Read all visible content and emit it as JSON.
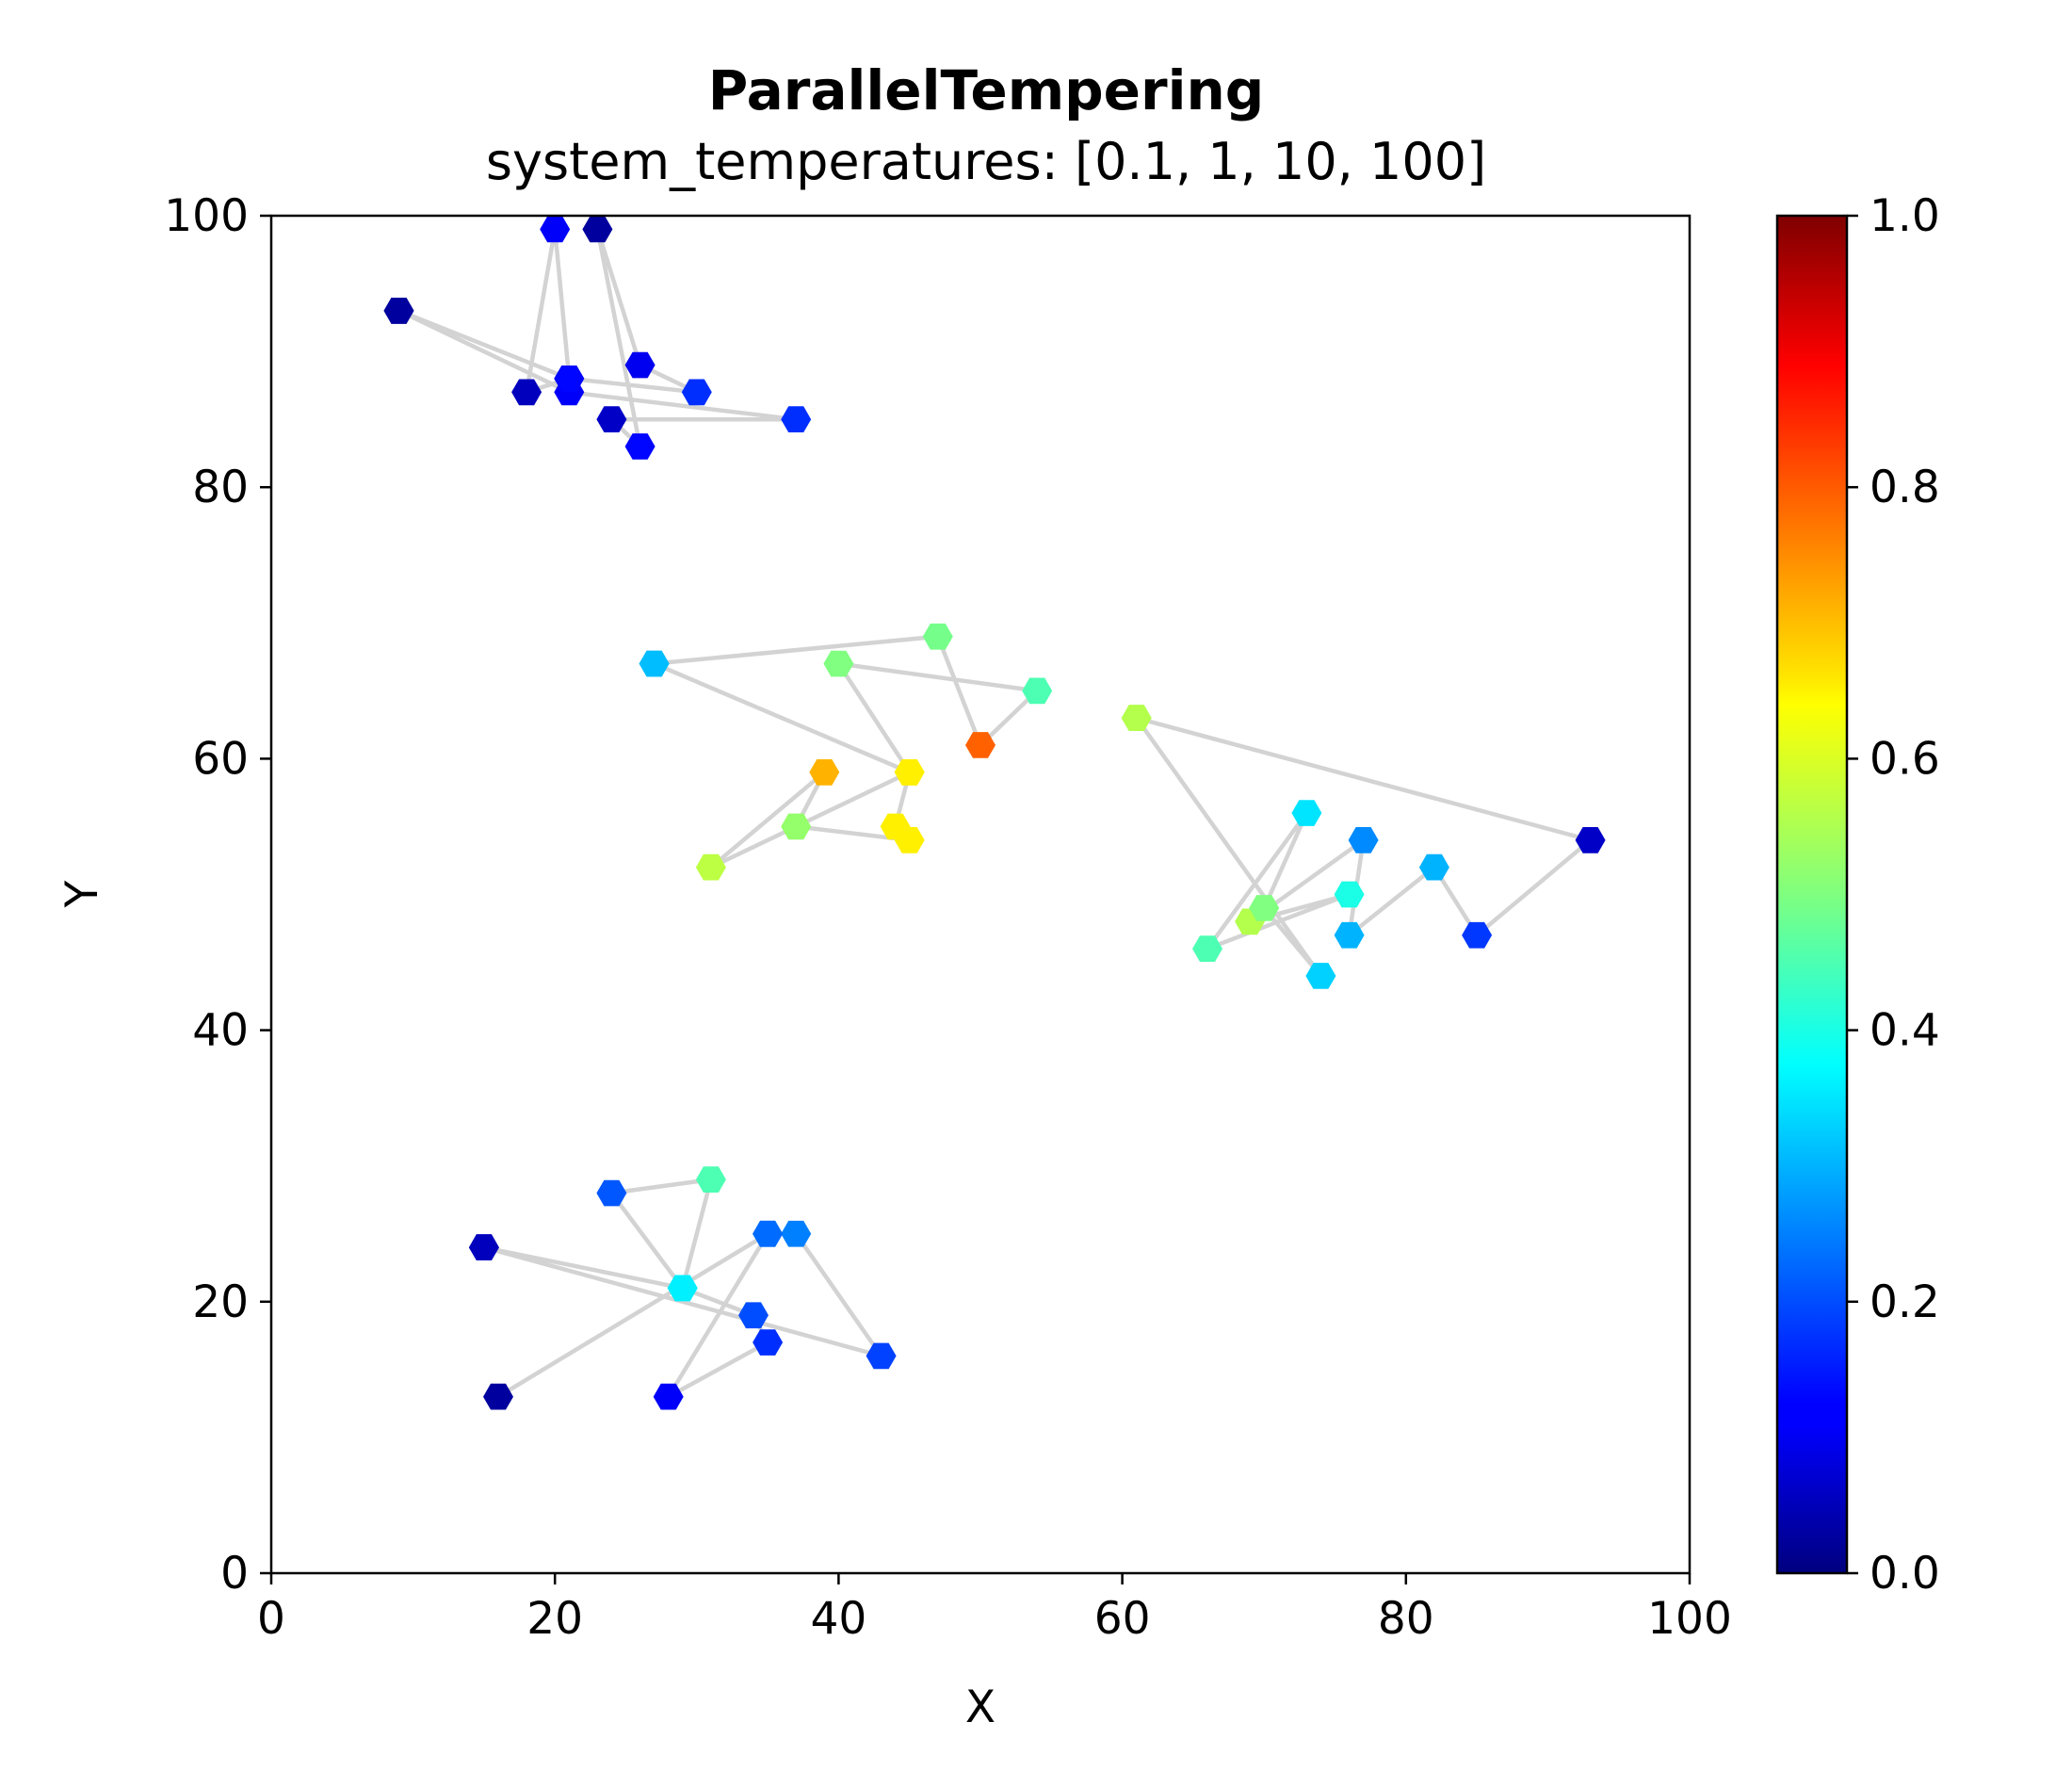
{
  "chart_data": {
    "type": "scatter",
    "title": "ParallelTempering",
    "subtitle": "system_temperatures: [0.1, 1, 10, 100]",
    "xlabel": "X",
    "ylabel": "Y",
    "xlim": [
      0,
      100
    ],
    "ylim": [
      0,
      100
    ],
    "x_ticks": [
      "0",
      "20",
      "40",
      "60",
      "80",
      "100"
    ],
    "y_ticks": [
      "0",
      "20",
      "40",
      "60",
      "80",
      "100"
    ],
    "grid": false,
    "marker": "hexagon",
    "line_color": "#d3d3d3",
    "colormap": "jet",
    "colorbar": {
      "range": [
        0,
        1
      ],
      "ticks": [
        "0.0",
        "0.2",
        "0.4",
        "0.6",
        "0.8",
        "1.0"
      ]
    },
    "paths": [
      {
        "points": [
          {
            "x": 9,
            "y": 93,
            "v": 0.03
          },
          {
            "x": 21,
            "y": 87,
            "v": 0.12
          },
          {
            "x": 37,
            "y": 85,
            "v": 0.17
          },
          {
            "x": 24,
            "y": 85,
            "v": 0.07
          },
          {
            "x": 26,
            "y": 83,
            "v": 0.13
          },
          {
            "x": 23,
            "y": 99,
            "v": 0.03
          },
          {
            "x": 26,
            "y": 89,
            "v": 0.11
          },
          {
            "x": 30,
            "y": 87,
            "v": 0.17
          },
          {
            "x": 21,
            "y": 88,
            "v": 0.13
          },
          {
            "x": 18,
            "y": 87,
            "v": 0.06
          },
          {
            "x": 20,
            "y": 99,
            "v": 0.12
          },
          {
            "x": 21,
            "y": 88,
            "v": 0.13
          },
          {
            "x": 9,
            "y": 93,
            "v": 0.03
          }
        ]
      },
      {
        "points": [
          {
            "x": 27,
            "y": 67,
            "v": 0.31
          },
          {
            "x": 47,
            "y": 69,
            "v": 0.49
          },
          {
            "x": 50,
            "y": 61,
            "v": 0.78
          },
          {
            "x": 54,
            "y": 65,
            "v": 0.45
          },
          {
            "x": 40,
            "y": 67,
            "v": 0.5
          },
          {
            "x": 45,
            "y": 59,
            "v": 0.64
          },
          {
            "x": 44,
            "y": 55,
            "v": 0.64
          },
          {
            "x": 45,
            "y": 54,
            "v": 0.64
          },
          {
            "x": 37,
            "y": 55,
            "v": 0.52
          },
          {
            "x": 39,
            "y": 59,
            "v": 0.7
          },
          {
            "x": 31,
            "y": 52,
            "v": 0.56
          },
          {
            "x": 45,
            "y": 59,
            "v": 0.64
          },
          {
            "x": 27,
            "y": 67,
            "v": 0.31
          }
        ]
      },
      {
        "points": [
          {
            "x": 61,
            "y": 63,
            "v": 0.55
          },
          {
            "x": 93,
            "y": 54,
            "v": 0.07
          },
          {
            "x": 85,
            "y": 47,
            "v": 0.18
          },
          {
            "x": 82,
            "y": 52,
            "v": 0.3
          },
          {
            "x": 76,
            "y": 47,
            "v": 0.3
          },
          {
            "x": 77,
            "y": 54,
            "v": 0.26
          },
          {
            "x": 69,
            "y": 48,
            "v": 0.55
          },
          {
            "x": 76,
            "y": 50,
            "v": 0.4
          },
          {
            "x": 66,
            "y": 46,
            "v": 0.45
          },
          {
            "x": 73,
            "y": 56,
            "v": 0.35
          },
          {
            "x": 70,
            "y": 49,
            "v": 0.5
          },
          {
            "x": 74,
            "y": 44,
            "v": 0.33
          },
          {
            "x": 61,
            "y": 63,
            "v": 0.55
          }
        ]
      },
      {
        "points": [
          {
            "x": 15,
            "y": 24,
            "v": 0.06
          },
          {
            "x": 43,
            "y": 16,
            "v": 0.19
          },
          {
            "x": 37,
            "y": 25,
            "v": 0.25
          },
          {
            "x": 35,
            "y": 25,
            "v": 0.23
          },
          {
            "x": 16,
            "y": 13,
            "v": 0.03
          },
          {
            "x": 35,
            "y": 25,
            "v": 0.23
          },
          {
            "x": 28,
            "y": 13,
            "v": 0.12
          },
          {
            "x": 35,
            "y": 17,
            "v": 0.17
          },
          {
            "x": 34,
            "y": 19,
            "v": 0.2
          },
          {
            "x": 29,
            "y": 21,
            "v": 0.36
          },
          {
            "x": 31,
            "y": 29,
            "v": 0.45
          },
          {
            "x": 24,
            "y": 28,
            "v": 0.21
          },
          {
            "x": 29,
            "y": 21,
            "v": 0.36
          },
          {
            "x": 15,
            "y": 24,
            "v": 0.06
          }
        ]
      }
    ]
  }
}
